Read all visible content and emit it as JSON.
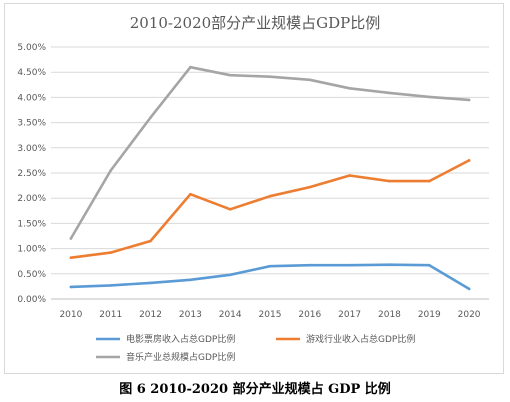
{
  "chart_data": {
    "type": "line",
    "title": "2010-2020部分产业规模占GDP比例",
    "categories": [
      "2010",
      "2011",
      "2012",
      "2013",
      "2014",
      "2015",
      "2016",
      "2017",
      "2018",
      "2019",
      "2020"
    ],
    "y_ticks": [
      "0.00%",
      "0.50%",
      "1.00%",
      "1.50%",
      "2.00%",
      "2.50%",
      "3.00%",
      "3.50%",
      "4.00%",
      "4.50%",
      "5.00%"
    ],
    "ylim": [
      0,
      5
    ],
    "y_unit": "%",
    "grid": true,
    "legend_position": "bottom",
    "series": [
      {
        "name": "电影票房收入占总GDP比例",
        "color": "#5B9BD5",
        "values": [
          0.24,
          0.27,
          0.32,
          0.38,
          0.48,
          0.65,
          0.67,
          0.67,
          0.68,
          0.67,
          0.2
        ]
      },
      {
        "name": "游戏行业收入占总GDP比例",
        "color": "#ED7D31",
        "values": [
          0.82,
          0.92,
          1.15,
          2.08,
          1.78,
          2.04,
          2.22,
          2.45,
          2.34,
          2.34,
          2.75
        ]
      },
      {
        "name": "音乐产业总规模占GDP比例",
        "color": "#A5A5A5",
        "values": [
          1.2,
          2.55,
          3.6,
          4.6,
          4.44,
          4.41,
          4.35,
          4.18,
          4.09,
          4.01,
          3.95
        ]
      }
    ]
  },
  "caption": "图 6 2010-2020 部分产业规模占 GDP 比例"
}
